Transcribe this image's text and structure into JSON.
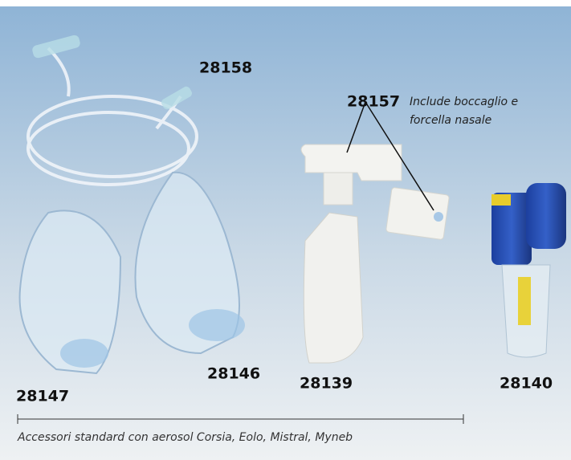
{
  "products": [
    {
      "code": "28158"
    },
    {
      "code": "28157",
      "note": [
        "Include boccaglio e",
        "forcella nasale"
      ]
    },
    {
      "code": "28147"
    },
    {
      "code": "28146"
    },
    {
      "code": "28139"
    },
    {
      "code": "28140"
    }
  ],
  "caption": "Accessori standard con aerosol Corsia, Eolo, Mistral, Myneb"
}
